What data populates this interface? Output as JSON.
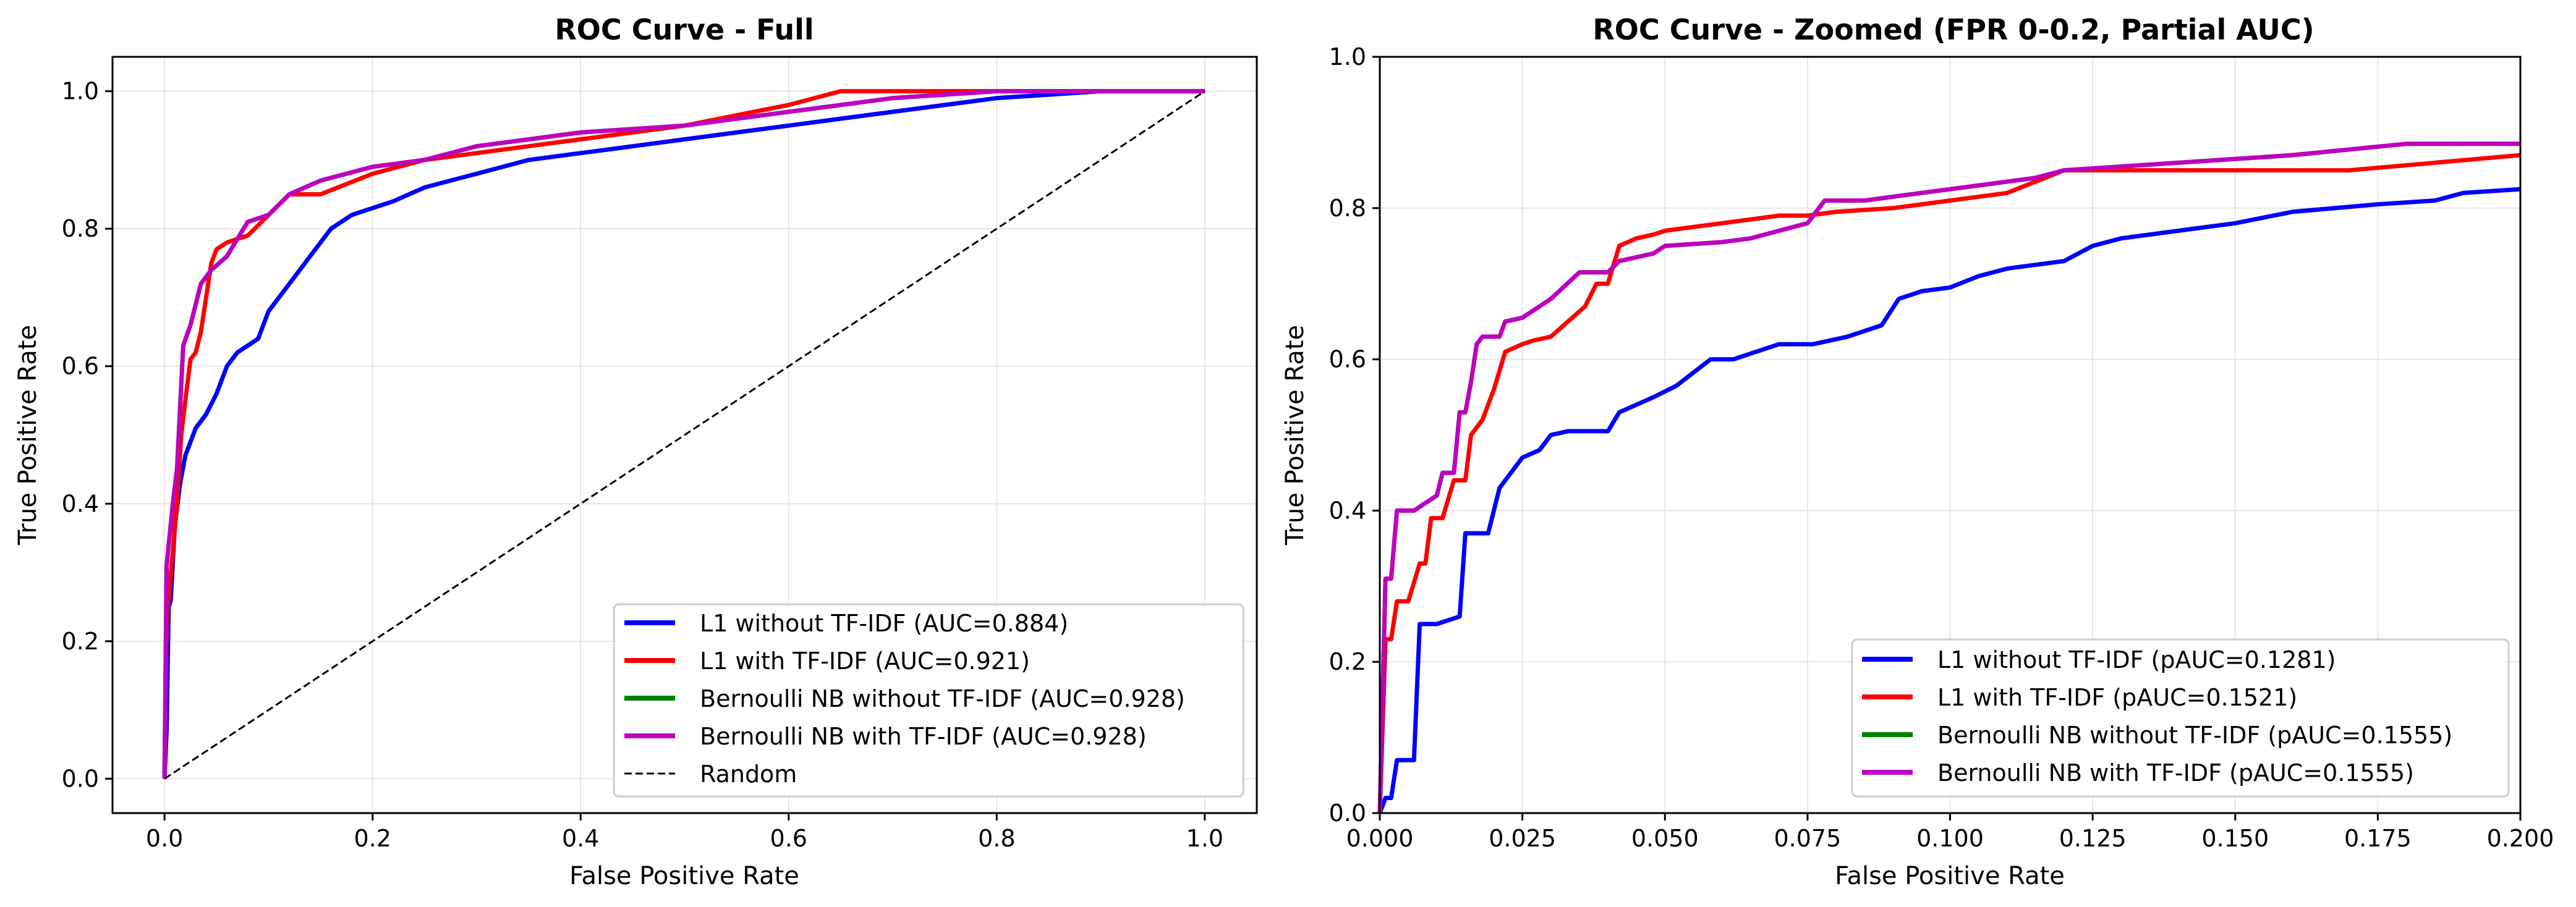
{
  "chart_data": [
    {
      "type": "line",
      "title": "ROC Curve - Full",
      "xlabel": "False Positive Rate",
      "ylabel": "True Positive Rate",
      "xlim": [
        -0.05,
        1.05
      ],
      "ylim": [
        -0.05,
        1.05
      ],
      "xticks": [
        0.0,
        0.2,
        0.4,
        0.6,
        0.8,
        1.0
      ],
      "yticks": [
        0.0,
        0.2,
        0.4,
        0.6,
        0.8,
        1.0
      ],
      "xtick_labels": [
        "0.0",
        "0.2",
        "0.4",
        "0.6",
        "0.8",
        "1.0"
      ],
      "ytick_labels": [
        "0.0",
        "0.2",
        "0.4",
        "0.6",
        "0.8",
        "1.0"
      ],
      "grid": true,
      "legend_position": "lower-right",
      "series": [
        {
          "name": "L1 without TF-IDF (AUC=0.884)",
          "color": "#0000ff",
          "style": "solid",
          "x": [
            0,
            0.002,
            0.004,
            0.006,
            0.01,
            0.015,
            0.02,
            0.03,
            0.04,
            0.05,
            0.06,
            0.07,
            0.08,
            0.09,
            0.1,
            0.12,
            0.14,
            0.16,
            0.18,
            0.2,
            0.22,
            0.25,
            0.3,
            0.35,
            0.4,
            0.45,
            0.5,
            0.55,
            0.6,
            0.65,
            0.7,
            0.75,
            0.8,
            0.9,
            1.0
          ],
          "y": [
            0,
            0.07,
            0.25,
            0.26,
            0.37,
            0.43,
            0.47,
            0.51,
            0.53,
            0.56,
            0.6,
            0.62,
            0.63,
            0.64,
            0.68,
            0.72,
            0.76,
            0.8,
            0.82,
            0.83,
            0.84,
            0.86,
            0.88,
            0.9,
            0.91,
            0.92,
            0.93,
            0.94,
            0.95,
            0.96,
            0.97,
            0.98,
            0.99,
            1.0,
            1.0
          ]
        },
        {
          "name": "L1 with TF-IDF (AUC=0.921)",
          "color": "#ff0000",
          "style": "solid",
          "x": [
            0,
            0.002,
            0.005,
            0.008,
            0.012,
            0.016,
            0.02,
            0.025,
            0.03,
            0.035,
            0.04,
            0.045,
            0.05,
            0.06,
            0.08,
            0.1,
            0.12,
            0.15,
            0.2,
            0.25,
            0.3,
            0.4,
            0.5,
            0.6,
            0.65,
            0.8,
            0.9
          ],
          "y": [
            0,
            0.23,
            0.28,
            0.33,
            0.4,
            0.5,
            0.55,
            0.61,
            0.62,
            0.65,
            0.7,
            0.75,
            0.77,
            0.78,
            0.79,
            0.82,
            0.85,
            0.85,
            0.88,
            0.9,
            0.91,
            0.93,
            0.95,
            0.98,
            1.0,
            1.0,
            1.0
          ]
        },
        {
          "name": "Bernoulli NB without TF-IDF (AUC=0.928)",
          "color": "#008000",
          "style": "solid",
          "x": [
            0,
            0.002,
            0.008,
            0.012,
            0.018,
            0.025,
            0.035,
            0.045,
            0.06,
            0.08,
            0.1,
            0.12,
            0.15,
            0.2,
            0.25,
            0.3,
            0.4,
            0.5,
            0.6,
            0.7,
            0.8,
            1.0
          ],
          "y": [
            0,
            0.31,
            0.4,
            0.45,
            0.63,
            0.66,
            0.72,
            0.74,
            0.76,
            0.81,
            0.82,
            0.85,
            0.87,
            0.89,
            0.9,
            0.92,
            0.94,
            0.95,
            0.97,
            0.99,
            1.0,
            1.0
          ]
        },
        {
          "name": "Bernoulli NB with TF-IDF (AUC=0.928)",
          "color": "#bf00bf",
          "style": "solid",
          "x": [
            0,
            0.002,
            0.008,
            0.012,
            0.018,
            0.025,
            0.035,
            0.045,
            0.06,
            0.08,
            0.1,
            0.12,
            0.15,
            0.2,
            0.25,
            0.3,
            0.4,
            0.5,
            0.6,
            0.7,
            0.8,
            1.0
          ],
          "y": [
            0,
            0.31,
            0.4,
            0.45,
            0.63,
            0.66,
            0.72,
            0.74,
            0.76,
            0.81,
            0.82,
            0.85,
            0.87,
            0.89,
            0.9,
            0.92,
            0.94,
            0.95,
            0.97,
            0.99,
            1.0,
            1.0
          ]
        },
        {
          "name": "Random",
          "color": "#000000",
          "style": "dashed",
          "x": [
            0,
            1
          ],
          "y": [
            0,
            1
          ]
        }
      ]
    },
    {
      "type": "line",
      "title": "ROC Curve - Zoomed (FPR 0-0.2, Partial AUC)",
      "xlabel": "False Positive Rate",
      "ylabel": "True Positive Rate",
      "xlim": [
        0.0,
        0.2
      ],
      "ylim": [
        0.0,
        1.0
      ],
      "xticks": [
        0.0,
        0.025,
        0.05,
        0.075,
        0.1,
        0.125,
        0.15,
        0.175,
        0.2
      ],
      "yticks": [
        0.0,
        0.2,
        0.4,
        0.6,
        0.8,
        1.0
      ],
      "xtick_labels": [
        "0.000",
        "0.025",
        "0.050",
        "0.075",
        "0.100",
        "0.125",
        "0.150",
        "0.175",
        "0.200"
      ],
      "ytick_labels": [
        "0.0",
        "0.2",
        "0.4",
        "0.6",
        "0.8",
        "1.0"
      ],
      "grid": true,
      "legend_position": "lower-right",
      "series": [
        {
          "name": "L1 without TF-IDF (pAUC=0.1281)",
          "color": "#0000ff",
          "style": "solid",
          "x": [
            0,
            0.001,
            0.002,
            0.003,
            0.006,
            0.007,
            0.01,
            0.014,
            0.015,
            0.019,
            0.021,
            0.023,
            0.025,
            0.028,
            0.03,
            0.033,
            0.04,
            0.042,
            0.048,
            0.052,
            0.058,
            0.062,
            0.07,
            0.076,
            0.082,
            0.088,
            0.091,
            0.095,
            0.1,
            0.105,
            0.11,
            0.12,
            0.125,
            0.13,
            0.14,
            0.15,
            0.16,
            0.175,
            0.185,
            0.19,
            0.2
          ],
          "y": [
            0,
            0.02,
            0.02,
            0.07,
            0.07,
            0.25,
            0.25,
            0.26,
            0.37,
            0.37,
            0.43,
            0.45,
            0.47,
            0.48,
            0.5,
            0.505,
            0.505,
            0.53,
            0.55,
            0.565,
            0.6,
            0.6,
            0.62,
            0.62,
            0.63,
            0.645,
            0.68,
            0.69,
            0.695,
            0.71,
            0.72,
            0.73,
            0.75,
            0.76,
            0.77,
            0.78,
            0.795,
            0.805,
            0.81,
            0.82,
            0.825
          ]
        },
        {
          "name": "L1 with TF-IDF (pAUC=0.1521)",
          "color": "#ff0000",
          "style": "solid",
          "x": [
            0,
            0.001,
            0.002,
            0.003,
            0.005,
            0.007,
            0.008,
            0.009,
            0.011,
            0.013,
            0.015,
            0.016,
            0.018,
            0.02,
            0.022,
            0.025,
            0.027,
            0.03,
            0.033,
            0.036,
            0.038,
            0.04,
            0.042,
            0.045,
            0.048,
            0.05,
            0.055,
            0.06,
            0.065,
            0.07,
            0.075,
            0.08,
            0.09,
            0.1,
            0.11,
            0.12,
            0.13,
            0.15,
            0.17,
            0.185,
            0.2
          ],
          "y": [
            0,
            0.23,
            0.23,
            0.28,
            0.28,
            0.33,
            0.33,
            0.39,
            0.39,
            0.44,
            0.44,
            0.5,
            0.52,
            0.56,
            0.61,
            0.62,
            0.625,
            0.63,
            0.65,
            0.67,
            0.7,
            0.7,
            0.75,
            0.76,
            0.765,
            0.77,
            0.775,
            0.78,
            0.785,
            0.79,
            0.79,
            0.795,
            0.8,
            0.81,
            0.82,
            0.85,
            0.85,
            0.85,
            0.85,
            0.86,
            0.87
          ]
        },
        {
          "name": "Bernoulli NB without TF-IDF (pAUC=0.1555)",
          "color": "#008000",
          "style": "solid",
          "x": [
            0,
            0.001,
            0.002,
            0.003,
            0.006,
            0.008,
            0.01,
            0.011,
            0.013,
            0.014,
            0.015,
            0.016,
            0.017,
            0.018,
            0.021,
            0.022,
            0.025,
            0.027,
            0.03,
            0.035,
            0.04,
            0.042,
            0.045,
            0.048,
            0.05,
            0.06,
            0.065,
            0.07,
            0.075,
            0.078,
            0.085,
            0.09,
            0.1,
            0.105,
            0.115,
            0.12,
            0.14,
            0.16,
            0.18,
            0.2
          ],
          "y": [
            0,
            0.31,
            0.31,
            0.4,
            0.4,
            0.41,
            0.42,
            0.45,
            0.45,
            0.53,
            0.53,
            0.57,
            0.62,
            0.63,
            0.63,
            0.65,
            0.655,
            0.665,
            0.68,
            0.715,
            0.715,
            0.73,
            0.735,
            0.74,
            0.75,
            0.755,
            0.76,
            0.77,
            0.78,
            0.81,
            0.81,
            0.815,
            0.825,
            0.83,
            0.84,
            0.85,
            0.86,
            0.87,
            0.885,
            0.885
          ]
        },
        {
          "name": "Bernoulli NB with TF-IDF (pAUC=0.1555)",
          "color": "#bf00bf",
          "style": "solid",
          "x": [
            0,
            0.001,
            0.002,
            0.003,
            0.006,
            0.008,
            0.01,
            0.011,
            0.013,
            0.014,
            0.015,
            0.016,
            0.017,
            0.018,
            0.021,
            0.022,
            0.025,
            0.027,
            0.03,
            0.035,
            0.04,
            0.042,
            0.045,
            0.048,
            0.05,
            0.06,
            0.065,
            0.07,
            0.075,
            0.078,
            0.085,
            0.09,
            0.1,
            0.105,
            0.115,
            0.12,
            0.14,
            0.16,
            0.18,
            0.2
          ],
          "y": [
            0,
            0.31,
            0.31,
            0.4,
            0.4,
            0.41,
            0.42,
            0.45,
            0.45,
            0.53,
            0.53,
            0.57,
            0.62,
            0.63,
            0.63,
            0.65,
            0.655,
            0.665,
            0.68,
            0.715,
            0.715,
            0.73,
            0.735,
            0.74,
            0.75,
            0.755,
            0.76,
            0.77,
            0.78,
            0.81,
            0.81,
            0.815,
            0.825,
            0.83,
            0.84,
            0.85,
            0.86,
            0.87,
            0.885,
            0.885
          ]
        }
      ]
    }
  ]
}
